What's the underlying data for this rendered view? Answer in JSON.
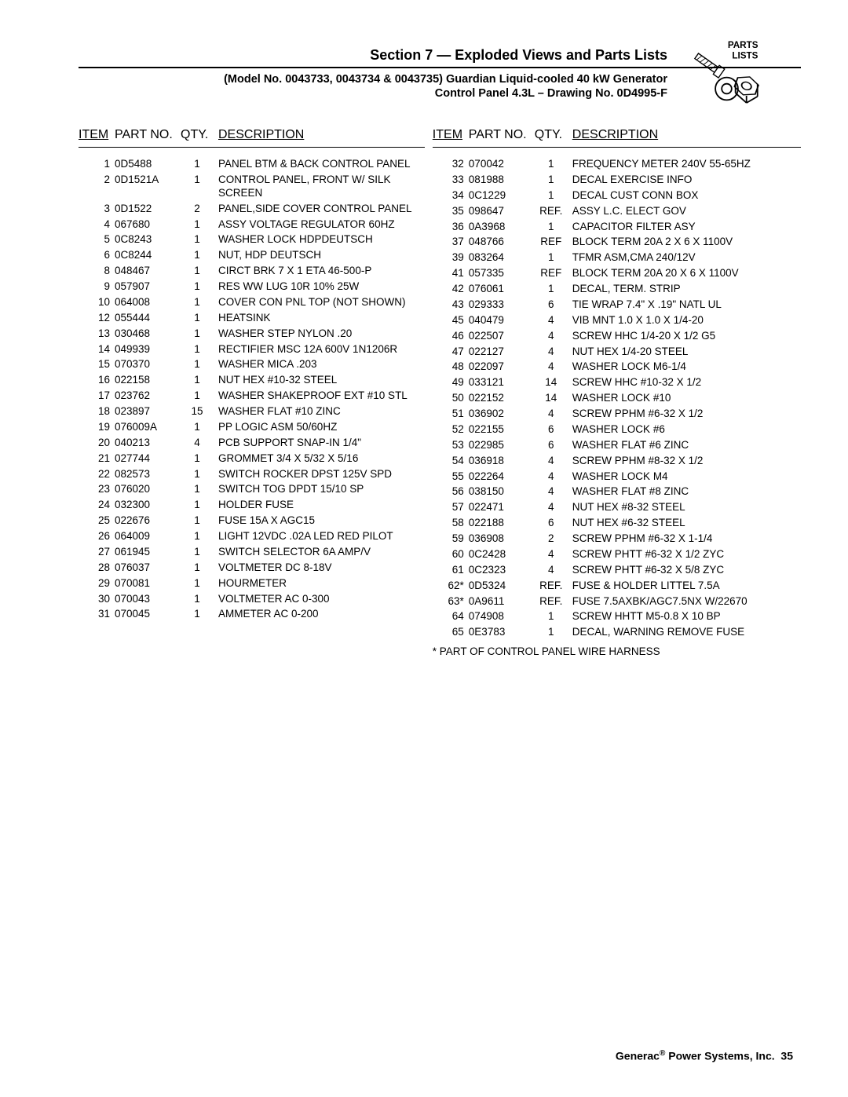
{
  "header": {
    "section_title": "Section 7 — Exploded Views and Parts Lists",
    "model_line": "(Model No. 0043733, 0043734 & 0043735) Guardian Liquid-cooled 40 kW Generator",
    "drawing_line": "Control Panel 4.3L – Drawing No. 0D4995-F",
    "icon_labels": {
      "parts": "PARTS",
      "lists": "LISTS"
    }
  },
  "table_headers": {
    "item": "ITEM",
    "part": "PART NO.",
    "qty": "QTY.",
    "desc": "DESCRIPTION"
  },
  "left_rows": [
    {
      "item": "1",
      "part": "0D5488",
      "qty": "1",
      "desc": "PANEL BTM & BACK CONTROL PANEL"
    },
    {
      "item": "2",
      "part": "0D1521A",
      "qty": "1",
      "desc": "CONTROL PANEL, FRONT W/ SILK SCREEN"
    },
    {
      "item": "3",
      "part": "0D1522",
      "qty": "2",
      "desc": "PANEL,SIDE COVER CONTROL PANEL"
    },
    {
      "item": "4",
      "part": "067680",
      "qty": "1",
      "desc": "ASSY VOLTAGE REGULATOR 60HZ"
    },
    {
      "item": "5",
      "part": "0C8243",
      "qty": "1",
      "desc": "WASHER LOCK HDPDEUTSCH"
    },
    {
      "item": "6",
      "part": "0C8244",
      "qty": "1",
      "desc": "NUT, HDP DEUTSCH"
    },
    {
      "item": "8",
      "part": "048467",
      "qty": "1",
      "desc": "CIRCT BRK 7 X 1 ETA 46-500-P"
    },
    {
      "item": "9",
      "part": "057907",
      "qty": "1",
      "desc": "RES WW LUG 10R 10% 25W"
    },
    {
      "item": "10",
      "part": "064008",
      "qty": "1",
      "desc": "COVER CON PNL TOP (NOT SHOWN)"
    },
    {
      "item": "12",
      "part": "055444",
      "qty": "1",
      "desc": "HEATSINK"
    },
    {
      "item": "13",
      "part": "030468",
      "qty": "1",
      "desc": "WASHER STEP NYLON .20"
    },
    {
      "item": "14",
      "part": "049939",
      "qty": "1",
      "desc": "RECTIFIER MSC 12A 600V 1N1206R"
    },
    {
      "item": "15",
      "part": "070370",
      "qty": "1",
      "desc": "WASHER MICA .203"
    },
    {
      "item": "16",
      "part": "022158",
      "qty": "1",
      "desc": "NUT HEX #10-32 STEEL"
    },
    {
      "item": "17",
      "part": "023762",
      "qty": "1",
      "desc": "WASHER SHAKEPROOF EXT #10 STL"
    },
    {
      "item": "18",
      "part": "023897",
      "qty": "15",
      "desc": "WASHER FLAT #10 ZINC"
    },
    {
      "item": "19",
      "part": "076009A",
      "qty": "1",
      "desc": "PP LOGIC ASM 50/60HZ"
    },
    {
      "item": "20",
      "part": "040213",
      "qty": "4",
      "desc": "PCB SUPPORT SNAP-IN 1/4\""
    },
    {
      "item": "21",
      "part": "027744",
      "qty": "1",
      "desc": "GROMMET 3/4 X 5/32 X 5/16"
    },
    {
      "item": "22",
      "part": "082573",
      "qty": "1",
      "desc": "SWITCH ROCKER DPST 125V SPD"
    },
    {
      "item": "23",
      "part": "076020",
      "qty": "1",
      "desc": "SWITCH TOG DPDT 15/10 SP"
    },
    {
      "item": "24",
      "part": "032300",
      "qty": "1",
      "desc": "HOLDER FUSE"
    },
    {
      "item": "25",
      "part": "022676",
      "qty": "1",
      "desc": "FUSE 15A X AGC15"
    },
    {
      "item": "26",
      "part": "064009",
      "qty": "1",
      "desc": "LIGHT 12VDC .02A LED RED PILOT"
    },
    {
      "item": "27",
      "part": "061945",
      "qty": "1",
      "desc": "SWITCH SELECTOR 6A AMP/V"
    },
    {
      "item": "28",
      "part": "076037",
      "qty": "1",
      "desc": "VOLTMETER DC 8-18V"
    },
    {
      "item": "29",
      "part": "070081",
      "qty": "1",
      "desc": "HOURMETER"
    },
    {
      "item": "30",
      "part": "070043",
      "qty": "1",
      "desc": "VOLTMETER AC 0-300"
    },
    {
      "item": "31",
      "part": "070045",
      "qty": "1",
      "desc": "AMMETER AC 0-200"
    }
  ],
  "right_rows": [
    {
      "item": "32",
      "part": "070042",
      "qty": "1",
      "desc": "FREQUENCY METER 240V 55-65HZ"
    },
    {
      "item": "33",
      "part": "081988",
      "qty": "1",
      "desc": "DECAL EXERCISE INFO"
    },
    {
      "item": "34",
      "part": "0C1229",
      "qty": "1",
      "desc": "DECAL CUST CONN BOX"
    },
    {
      "item": "35",
      "part": "098647",
      "qty": "REF.",
      "desc": "ASSY L.C. ELECT GOV"
    },
    {
      "item": "36",
      "part": "0A3968",
      "qty": "1",
      "desc": "CAPACITOR FILTER ASY"
    },
    {
      "item": "37",
      "part": "048766",
      "qty": "REF",
      "desc": "BLOCK TERM 20A 2 X 6 X 1100V"
    },
    {
      "item": "39",
      "part": "083264",
      "qty": "1",
      "desc": "TFMR ASM,CMA 240/12V"
    },
    {
      "item": "41",
      "part": "057335",
      "qty": "REF",
      "desc": "BLOCK TERM 20A 20 X 6 X 1100V"
    },
    {
      "item": "42",
      "part": "076061",
      "qty": "1",
      "desc": "DECAL, TERM. STRIP"
    },
    {
      "item": "43",
      "part": "029333",
      "qty": "6",
      "desc": "TIE WRAP 7.4\" X .19\" NATL UL"
    },
    {
      "item": "45",
      "part": "040479",
      "qty": "4",
      "desc": "VIB MNT 1.0 X 1.0 X 1/4-20"
    },
    {
      "item": "46",
      "part": "022507",
      "qty": "4",
      "desc": "SCREW HHC 1/4-20 X 1/2 G5"
    },
    {
      "item": "47",
      "part": "022127",
      "qty": "4",
      "desc": "NUT HEX 1/4-20 STEEL"
    },
    {
      "item": "48",
      "part": "022097",
      "qty": "4",
      "desc": "WASHER LOCK M6-1/4"
    },
    {
      "item": "49",
      "part": "033121",
      "qty": "14",
      "desc": "SCREW HHC #10-32 X 1/2"
    },
    {
      "item": "50",
      "part": "022152",
      "qty": "14",
      "desc": "WASHER LOCK #10"
    },
    {
      "item": "51",
      "part": "036902",
      "qty": "4",
      "desc": "SCREW PPHM #6-32 X 1/2"
    },
    {
      "item": "52",
      "part": "022155",
      "qty": "6",
      "desc": "WASHER LOCK #6"
    },
    {
      "item": "53",
      "part": "022985",
      "qty": "6",
      "desc": "WASHER FLAT #6 ZINC"
    },
    {
      "item": "54",
      "part": "036918",
      "qty": "4",
      "desc": "SCREW PPHM #8-32 X 1/2"
    },
    {
      "item": "55",
      "part": "022264",
      "qty": "4",
      "desc": "WASHER LOCK M4"
    },
    {
      "item": "56",
      "part": "038150",
      "qty": "4",
      "desc": "WASHER FLAT #8 ZINC"
    },
    {
      "item": "57",
      "part": "022471",
      "qty": "4",
      "desc": "NUT HEX #8-32 STEEL"
    },
    {
      "item": "58",
      "part": "022188",
      "qty": "6",
      "desc": "NUT HEX #6-32 STEEL"
    },
    {
      "item": "59",
      "part": "036908",
      "qty": "2",
      "desc": "SCREW PPHM #6-32 X 1-1/4"
    },
    {
      "item": "60",
      "part": "0C2428",
      "qty": "4",
      "desc": "SCREW PHTT #6-32 X 1/2 ZYC"
    },
    {
      "item": "61",
      "part": "0C2323",
      "qty": "4",
      "desc": "SCREW PHTT #6-32 X 5/8 ZYC"
    },
    {
      "item": "62*",
      "part": "0D5324",
      "qty": "REF.",
      "desc": "FUSE & HOLDER LITTEL 7.5A"
    },
    {
      "item": "63*",
      "part": "0A9611",
      "qty": "REF.",
      "desc": "FUSE 7.5AXBK/AGC7.5NX W/22670"
    },
    {
      "item": "64",
      "part": "074908",
      "qty": "1",
      "desc": "SCREW HHTT M5-0.8 X 10 BP"
    },
    {
      "item": "65",
      "part": "0E3783",
      "qty": "1",
      "desc": "DECAL, WARNING REMOVE FUSE"
    }
  ],
  "footnote": "* PART OF CONTROL PANEL WIRE HARNESS",
  "footer": {
    "brand": "Generac",
    "reg": "®",
    "company": " Power Systems, Inc.",
    "page": "35"
  }
}
